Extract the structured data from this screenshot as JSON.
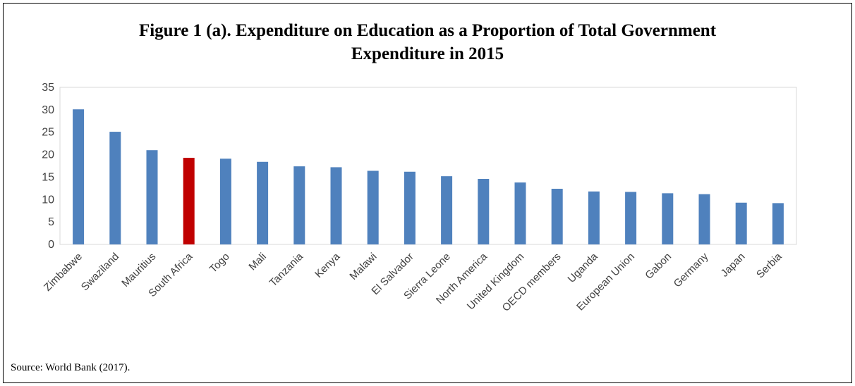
{
  "figure": {
    "title_line1": "Figure 1 (a). Expenditure on Education as a Proportion of Total Government",
    "title_line2": "Expenditure in 2015",
    "source": "Source: World Bank (2017)."
  },
  "chart_data": {
    "type": "bar",
    "title": "Figure 1 (a). Expenditure on Education as a Proportion of Total Government Expenditure in 2015",
    "xlabel": "",
    "ylabel": "",
    "ylim": [
      0,
      35
    ],
    "yticks": [
      0,
      5,
      10,
      15,
      20,
      25,
      30,
      35
    ],
    "grid": false,
    "legend": "none",
    "categories": [
      "Zimbabwe",
      "Swaziland",
      "Mauritius",
      "South Africa",
      "Togo",
      "Mali",
      "Tanzania",
      "Kenya",
      "Malawi",
      "El Salvador",
      "Sierra Leone",
      "North America",
      "United Kingdom",
      "OECD members",
      "Uganda",
      "European Union",
      "Gabon",
      "Germany",
      "Japan",
      "Serbia"
    ],
    "values": [
      30.1,
      25.1,
      21.0,
      19.3,
      19.1,
      18.4,
      17.4,
      17.2,
      16.4,
      16.2,
      15.2,
      14.6,
      13.8,
      12.4,
      11.8,
      11.7,
      11.4,
      11.2,
      9.3,
      9.2
    ],
    "colors": {
      "default": "#4f81bd",
      "highlight": "#c00000",
      "axis": "#d9d9d9"
    },
    "highlight_category": "South Africa"
  }
}
